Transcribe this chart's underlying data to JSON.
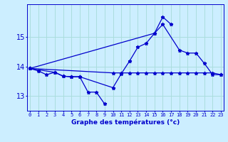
{
  "title": "Graphe des températures (°c)",
  "bg_color": "#cceeff",
  "grid_color": "#aadddd",
  "line_color": "#0000cc",
  "hours": [
    0,
    1,
    2,
    3,
    4,
    5,
    6,
    7,
    8,
    9,
    10,
    11,
    12,
    13,
    14,
    15,
    16,
    17,
    18,
    19,
    20,
    21,
    22,
    23
  ],
  "s1_x": [
    0,
    1,
    2,
    3,
    4,
    5,
    6,
    7,
    8,
    9
  ],
  "s1_y": [
    13.93,
    13.85,
    13.72,
    13.8,
    13.67,
    13.65,
    13.65,
    13.13,
    13.13,
    12.73
  ],
  "s2_x": [
    0,
    3,
    4,
    5,
    6,
    10,
    11,
    12,
    13,
    14,
    15,
    16,
    17
  ],
  "s2_y": [
    13.93,
    13.8,
    13.67,
    13.65,
    13.65,
    13.28,
    13.75,
    14.18,
    14.65,
    14.78,
    15.12,
    15.67,
    15.42
  ],
  "s3_x": [
    0,
    15,
    16,
    18,
    19,
    20,
    21,
    22,
    23
  ],
  "s3_y": [
    13.93,
    15.12,
    15.42,
    14.55,
    14.45,
    14.45,
    14.1,
    13.72,
    13.72
  ],
  "s4_x": [
    0,
    10,
    11,
    12,
    13,
    14,
    15,
    16,
    17,
    18,
    19,
    20,
    21,
    22,
    23
  ],
  "s4_y": [
    13.93,
    13.78,
    13.78,
    13.78,
    13.78,
    13.78,
    13.78,
    13.78,
    13.78,
    13.78,
    13.78,
    13.78,
    13.78,
    13.78,
    13.72
  ],
  "ylim": [
    12.5,
    16.1
  ],
  "yticks": [
    13,
    14,
    15
  ],
  "xlim": [
    -0.3,
    23.3
  ]
}
